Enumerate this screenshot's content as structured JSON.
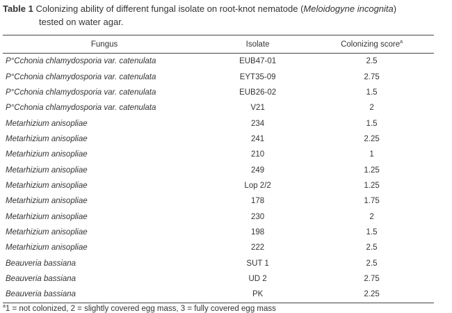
{
  "caption": {
    "label": "Table 1",
    "text_before": "Colonizing ability of different fungal isolate on root-knot nematode (",
    "species": "Meloidogyne incognita",
    "text_after": ")",
    "line2": "tested on water agar."
  },
  "table": {
    "headers": {
      "fungus": "Fungus",
      "isolate": "Isolate",
      "score": "Colonizing score",
      "score_sup": "a"
    },
    "rows": [
      {
        "fungus": "P°Cchonia chlamydosporia var. catenulata",
        "isolate": "EUB47-01",
        "score": "2.5"
      },
      {
        "fungus": "P°Cchonia chlamydosporia var. catenulata",
        "isolate": "EYT35-09",
        "score": "2.75"
      },
      {
        "fungus": "P°Cchonia chlamydosporia var. catenulata",
        "isolate": "EUB26-02",
        "score": "1.5"
      },
      {
        "fungus": "P°Cchonia chlamydosporia var. catenulata",
        "isolate": "V21",
        "score": "2"
      },
      {
        "fungus": "Metarhizium anisopliae",
        "isolate": "234",
        "score": "1.5"
      },
      {
        "fungus": "Metarhizium anisopliae",
        "isolate": "241",
        "score": "2.25"
      },
      {
        "fungus": "Metarhizium anisopliae",
        "isolate": "210",
        "score": "1"
      },
      {
        "fungus": "Metarhizium anisopliae",
        "isolate": "249",
        "score": "1.25"
      },
      {
        "fungus": "Metarhizium anisopliae",
        "isolate": "Lop 2/2",
        "score": "1.25"
      },
      {
        "fungus": "Metarhizium anisopliae",
        "isolate": "178",
        "score": "1.75"
      },
      {
        "fungus": "Metarhizium anisopliae",
        "isolate": "230",
        "score": "2"
      },
      {
        "fungus": "Metarhizium anisopliae",
        "isolate": "198",
        "score": "1.5"
      },
      {
        "fungus": "Metarhizium anisopliae",
        "isolate": "222",
        "score": "2.5"
      },
      {
        "fungus": "Beauveria bassiana",
        "isolate": "SUT 1",
        "score": "2.5"
      },
      {
        "fungus": "Beauveria bassiana",
        "isolate": "UD 2",
        "score": "2.75"
      },
      {
        "fungus": "Beauveria bassiana",
        "isolate": "PK",
        "score": "2.25"
      }
    ]
  },
  "footnote": {
    "sup": "a",
    "text": "1 = not colonized, 2 = slightly covered egg mass, 3 = fully covered egg mass"
  }
}
